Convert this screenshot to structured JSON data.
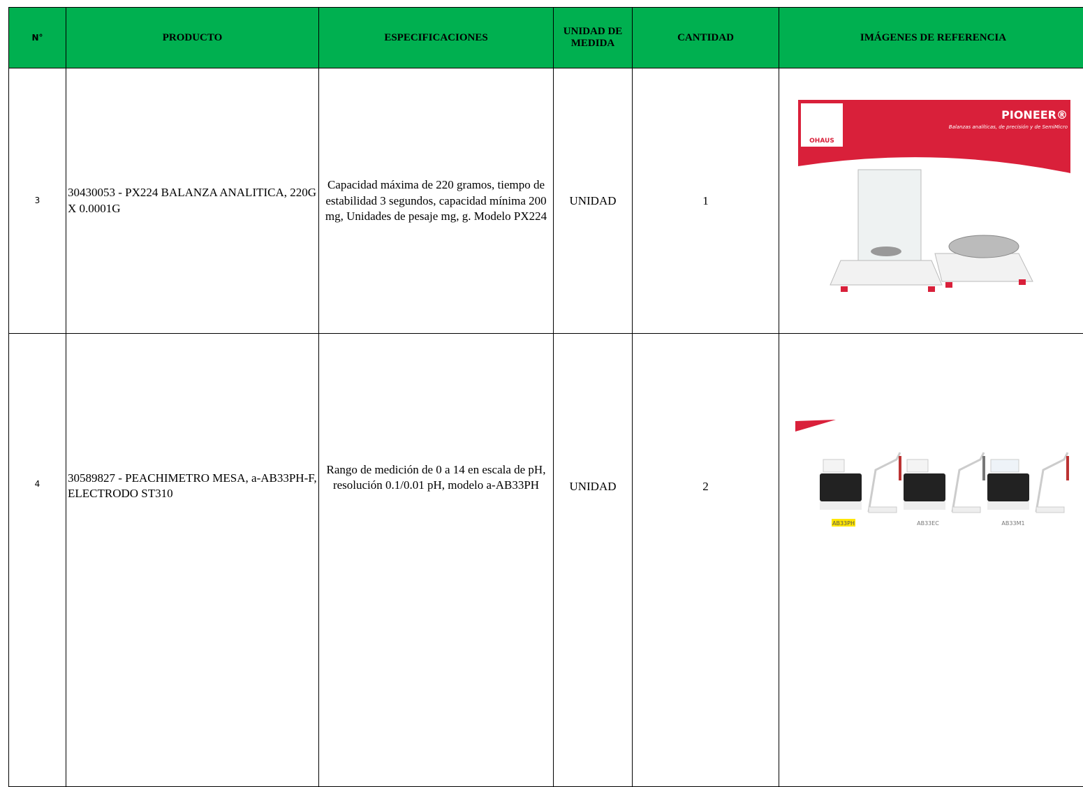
{
  "table": {
    "header": [
      "N°",
      "PRODUCTO",
      "ESPECIFICACIONES",
      "UNIDAD DE MEDIDA",
      "CANTIDAD",
      "IMÁGENES DE REFERENCIA"
    ],
    "rows": [
      [
        "3",
        "30430053 - PX224 BALANZA ANALITICA, 220G X 0.0001G",
        "Capacidad máxima de 220 gramos, tiempo de estabilidad 3 segundos, capacidad mínima 200 mg, Unidades de pesaje mg, g. Modelo PX224",
        "UNIDAD",
        "1"
      ],
      [
        "4",
        "30589827 - PEACHIMETRO MESA,  a-AB33PH-F, ELECTRODO ST310",
        "Rango de medición de 0 a 14 en escala de pH, resolución 0.1/0.01 pH, modelo a-AB33PH",
        "UNIDAD",
        "2"
      ]
    ]
  },
  "images": [
    {
      "brand": "PIONEER®",
      "tagline": "Balanzas analíticas, de precisión y de SemiMicro",
      "logo": "OHAUS"
    },
    {
      "labels": [
        "AB33PH",
        "AB33EC",
        "AB33M1"
      ]
    }
  ]
}
